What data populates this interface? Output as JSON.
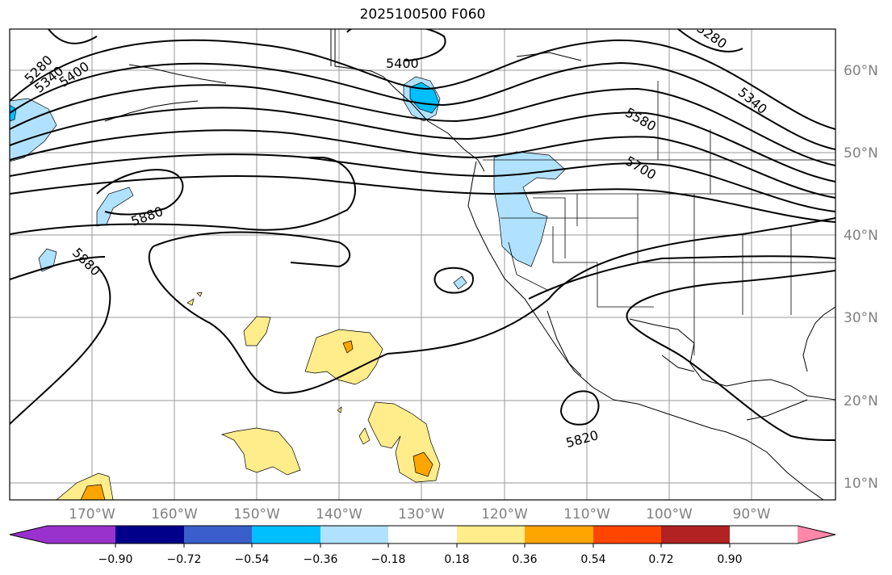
{
  "title": "2025100500 F060",
  "map": {
    "lat_ticks": [
      "60°N",
      "50°N",
      "40°N",
      "30°N",
      "20°N",
      "10°N"
    ],
    "lon_ticks": [
      "170°W",
      "160°W",
      "150°W",
      "140°W",
      "130°W",
      "120°W",
      "110°W",
      "100°W",
      "90°W"
    ],
    "contour_labels": [
      "5280",
      "5340",
      "5400",
      "5400",
      "5280",
      "5340",
      "5580",
      "5700",
      "5880",
      "5880",
      "5820"
    ],
    "contour_color": "#000000",
    "grid_color": "#999999"
  },
  "colorbar": {
    "labels": [
      "−0.90",
      "−0.72",
      "−0.54",
      "−0.36",
      "−0.18",
      "0.18",
      "0.36",
      "0.54",
      "0.72",
      "0.90"
    ],
    "colors": [
      "#9932cc",
      "#00008b",
      "#3a5fcd",
      "#00bfff",
      "#b0e2ff",
      "#ffffff",
      "#ffec8b",
      "#ffa500",
      "#ff4500",
      "#b22222",
      "#ff88aa"
    ]
  }
}
